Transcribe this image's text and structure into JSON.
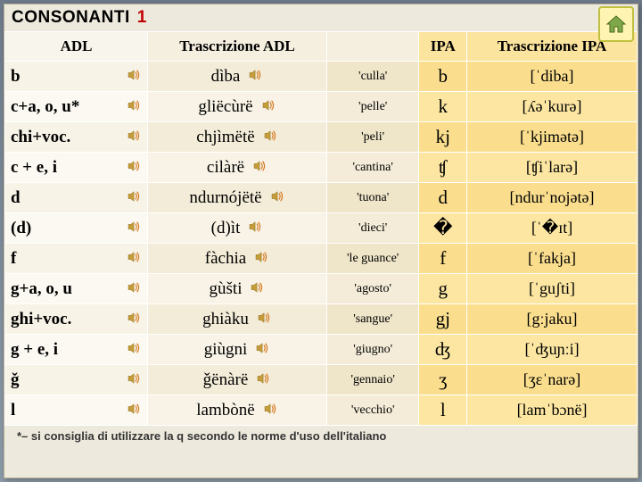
{
  "title": {
    "main": "CONSONANTI",
    "num": "1"
  },
  "header": {
    "adl": "ADL",
    "tadl": "Trascrizione ADL",
    "mean": "",
    "ipa": "IPA",
    "tipa": "Trascrizione IPA"
  },
  "footnote": "*– si consiglia di utilizzare la q secondo le norme d'uso dell'italiano",
  "rows": [
    {
      "adl": "b",
      "tadl": "dìba",
      "mean": "'culla'",
      "ipa": "b",
      "tipa": "[ˈdiba]"
    },
    {
      "adl": "c+a, o, u*",
      "tadl": "gliëcùrë",
      "mean": "'pelle'",
      "ipa": "k",
      "tipa": "[ʎəˈkurə]"
    },
    {
      "adl": "chi+voc.",
      "tadl": "chjìmëtë",
      "mean": "'peli'",
      "ipa": "kj",
      "tipa": "[ˈkjimətə]"
    },
    {
      "adl": "c + e, i",
      "tadl": "cilàrë",
      "mean": "'cantina'",
      "ipa": "ʧ",
      "tipa": "[ʧiˈlarə]"
    },
    {
      "adl": "d",
      "tadl": "ndurnójëtë",
      "mean": "'tuona'",
      "ipa": "d",
      "tipa": "[ndurˈnojətə]"
    },
    {
      "adl": "(d)",
      "tadl": "(d)ìt",
      "mean": "'dieci'",
      "ipa": "�",
      "tipa": "[ˈ�ɪt]"
    },
    {
      "adl": "f",
      "tadl": "fàchia",
      "mean": "'le guance'",
      "ipa": "f",
      "tipa": "[ˈfakja]"
    },
    {
      "adl": "g+a, o, u",
      "tadl": "gùšti",
      "mean": "'agosto'",
      "ipa": "g",
      "tipa": "[ˈguʃti]"
    },
    {
      "adl": "ghi+voc.",
      "tadl": "ghiàku",
      "mean": "'sangue'",
      "ipa": "gj",
      "tipa": "[gːjaku]"
    },
    {
      "adl": "g + e, i",
      "tadl": "giùgni",
      "mean": "'giugno'",
      "ipa": "ʤ",
      "tipa": "[ˈʤuɲːi]"
    },
    {
      "adl": "ǧ",
      "tadl": "ǧënàrë",
      "mean": "'gennaio'",
      "ipa": "ʒ",
      "tipa": "[ʒɛˈnarə]"
    },
    {
      "adl": "l",
      "tadl": "lambònë",
      "mean": "'vecchio'",
      "ipa": "l",
      "tipa": "[lamˈbɔnë]"
    }
  ],
  "colors": {
    "frame_bg": "#EDE9DD",
    "ipa_bg": "#FADE8E",
    "ipa_bg_alt": "#FCE6A2",
    "adl_bg": "#F7F3E7",
    "tadl_bg": "#F3ECD8",
    "mean_bg": "#EFE5C9",
    "accent_red": "#c00000"
  }
}
